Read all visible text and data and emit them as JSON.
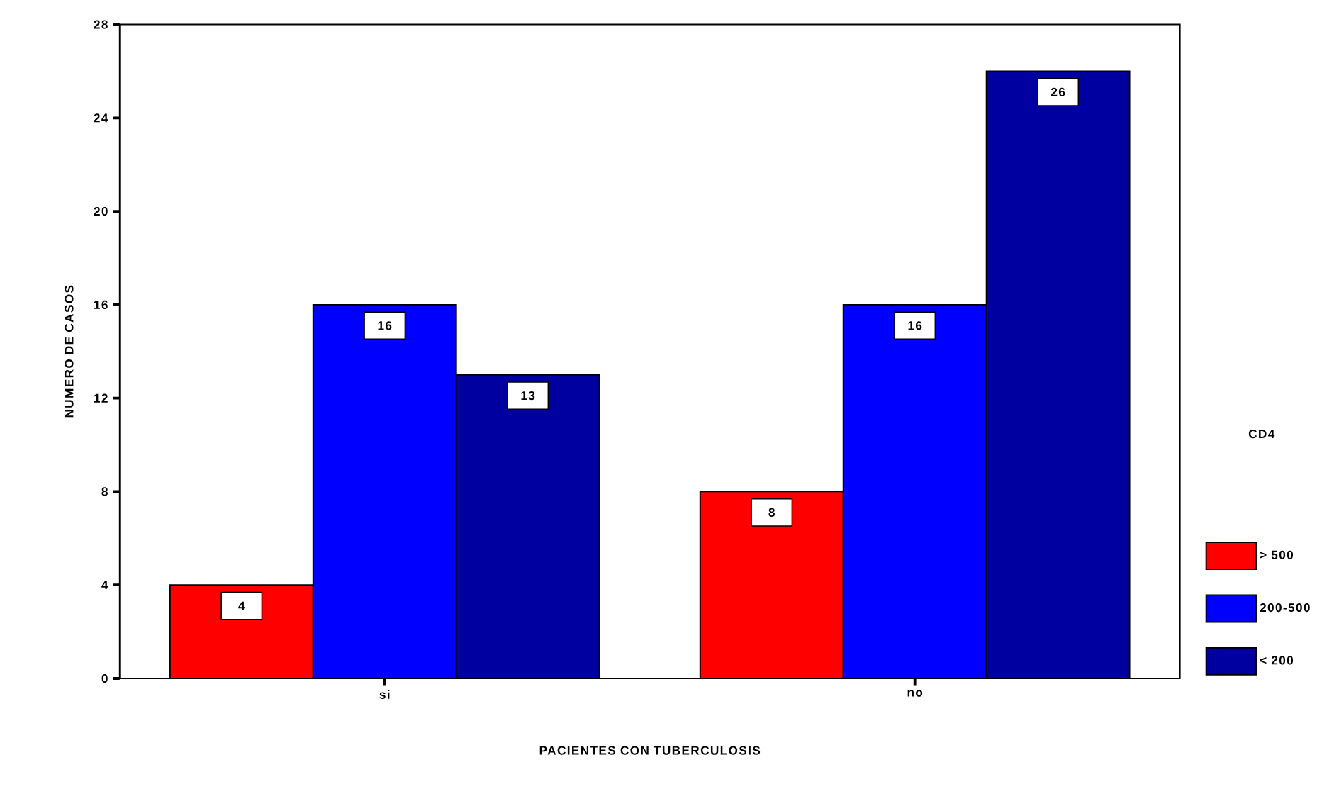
{
  "chart_data": {
    "type": "bar",
    "xlabel": "PACIENTES CON TUBERCULOSIS",
    "ylabel": "NUMERO DE CASOS",
    "legend_title": "CD4",
    "categories": [
      "si",
      "no"
    ],
    "series": [
      {
        "name": "> 500",
        "color": "#ff0000",
        "values": [
          4,
          8
        ]
      },
      {
        "name": "200-500",
        "color": "#0000ff",
        "values": [
          16,
          16
        ]
      },
      {
        "name": "< 200",
        "color": "#0000a0",
        "values": [
          13,
          26
        ]
      }
    ],
    "ylim": [
      0,
      28
    ],
    "yticks": [
      0,
      4,
      8,
      12,
      16,
      20,
      24,
      28
    ],
    "data_labels": true,
    "grid": false,
    "legend": "right"
  }
}
